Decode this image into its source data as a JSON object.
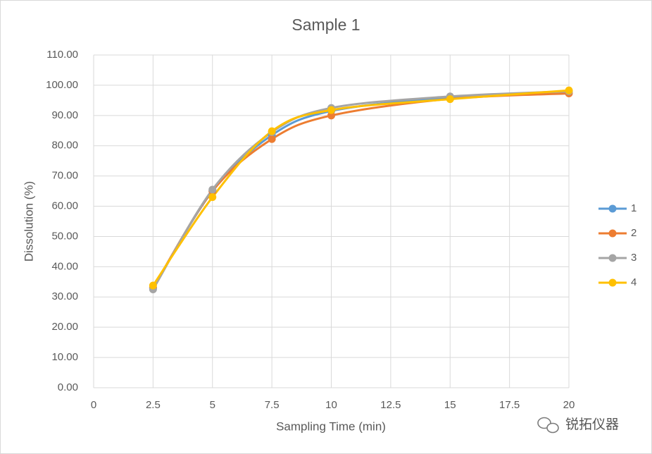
{
  "chart_data": {
    "type": "line",
    "title": "Sample 1",
    "x_label": "Sampling Time (min)",
    "y_label": "Dissolution (%)",
    "x": [
      2.5,
      5,
      7.5,
      10,
      15,
      20
    ],
    "series": [
      {
        "name": "1",
        "color": "#5b9bd5",
        "values": [
          33.0,
          65.0,
          83.5,
          91.5,
          96.0,
          98.0
        ]
      },
      {
        "name": "2",
        "color": "#ed7d31",
        "values": [
          33.0,
          65.0,
          82.2,
          90.0,
          95.5,
          97.3
        ]
      },
      {
        "name": "3",
        "color": "#a5a5a5",
        "values": [
          32.5,
          65.5,
          84.5,
          92.5,
          96.3,
          98.0
        ]
      },
      {
        "name": "4",
        "color": "#ffc000",
        "values": [
          33.8,
          63.0,
          84.8,
          91.8,
          95.4,
          98.3
        ]
      }
    ],
    "xlim": [
      0,
      20
    ],
    "xticks": [
      0,
      2.5,
      5,
      7.5,
      10,
      12.5,
      15,
      17.5,
      20
    ],
    "ylim": [
      0,
      110
    ],
    "yticks": [
      {
        "value": 0,
        "label": "0.00"
      },
      {
        "value": 10,
        "label": "10.00"
      },
      {
        "value": 20,
        "label": "20.00"
      },
      {
        "value": 30,
        "label": "30.00"
      },
      {
        "value": 40,
        "label": "40.00"
      },
      {
        "value": 50,
        "label": "50.00"
      },
      {
        "value": 60,
        "label": "60.00"
      },
      {
        "value": 70,
        "label": "70.00"
      },
      {
        "value": 80,
        "label": "80.00"
      },
      {
        "value": 90,
        "label": "90.00"
      },
      {
        "value": 100,
        "label": "100.00"
      },
      {
        "value": 110,
        "label": "110.00"
      }
    ],
    "grid": true,
    "smooth": true,
    "legend": "right",
    "watermark": "锐拓仪器"
  }
}
